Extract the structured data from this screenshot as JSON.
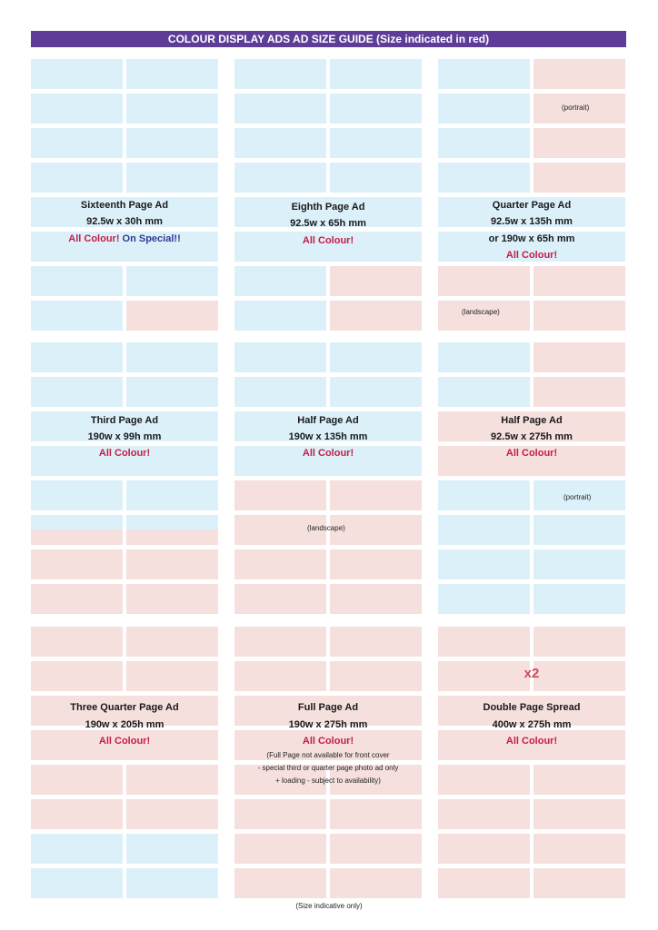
{
  "header": {
    "title": "COLOUR DISPLAY ADS AD SIZE GUIDE (Size indicated in red)"
  },
  "colors": {
    "header_bg": "#5e3d99",
    "blue_cell": "#dcf0fa",
    "pink_cell": "#f5e0de",
    "accent_red": "#c41d47",
    "accent_navy": "#2b3d93"
  },
  "ads": [
    {
      "name": "Sixteenth Page Ad",
      "size": "92.5w x 30h mm",
      "tag": "All Colour!",
      "special": "On Special!!"
    },
    {
      "name": "Eighth Page Ad",
      "size": "92.5w x 65h mm",
      "tag": "All Colour!"
    },
    {
      "name": "Quarter Page Ad",
      "size": "92.5w x 135h mm",
      "size_alt": "or 190w x 65h mm",
      "tag": "All Colour!",
      "note_top": "(portrait)",
      "note_bottom": "(landscape)"
    },
    {
      "name": "Third Page Ad",
      "size": "190w x 99h mm",
      "tag": "All Colour!"
    },
    {
      "name": "Half Page Ad",
      "size": "190w x 135h mm",
      "tag": "All Colour!",
      "note": "(landscape)"
    },
    {
      "name": "Half Page Ad",
      "size": "92.5w x 275h mm",
      "tag": "All Colour!",
      "note": "(portrait)"
    },
    {
      "name": "Three Quarter Page Ad",
      "size": "190w x 205h mm",
      "tag": "All Colour!"
    },
    {
      "name": "Full Page Ad",
      "size": "190w x 275h mm",
      "tag": "All Colour!",
      "notes": [
        "(Full Page not available for front cover",
        "- special third or quarter page photo ad only",
        "+ loading - subject to availability)"
      ]
    },
    {
      "name": "Double Page Spread",
      "size": "400w x 275h mm",
      "tag": "All Colour!",
      "multiplier": "x2"
    }
  ],
  "footer": {
    "note": "(Size indicative only)"
  }
}
